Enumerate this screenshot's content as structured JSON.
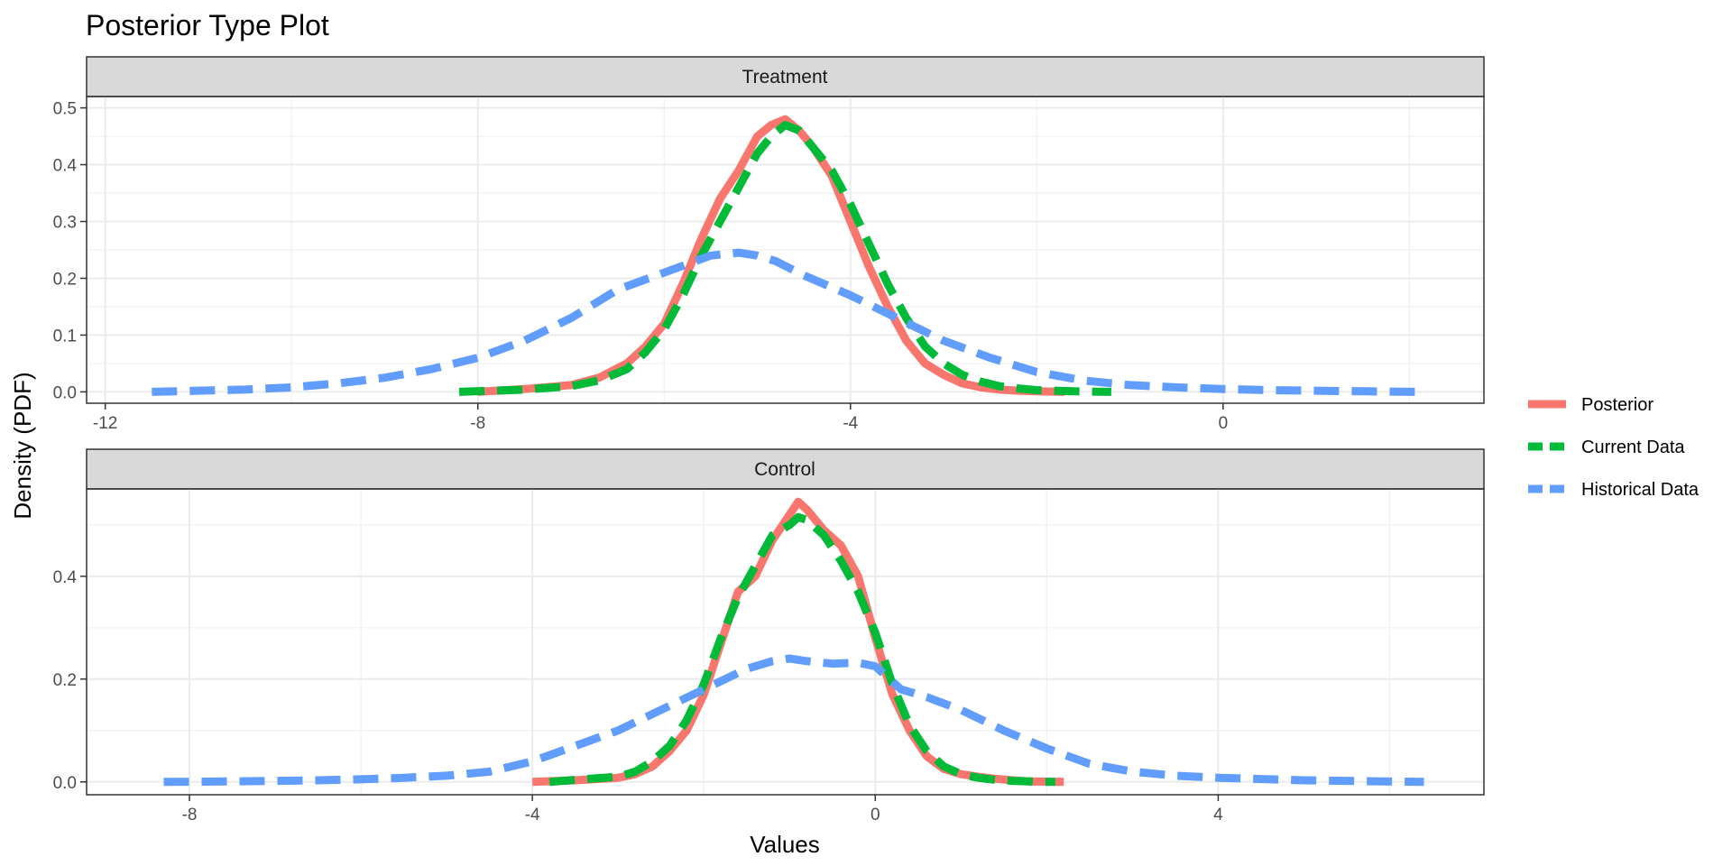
{
  "chart_data": {
    "type": "line",
    "title": "Posterior Type Plot",
    "xlabel": "Values",
    "ylabel": "Density (PDF)",
    "legend": {
      "placement": "right",
      "entries": [
        {
          "name": "Posterior",
          "color": "#F8766D",
          "dash": "solid"
        },
        {
          "name": "Current Data",
          "color": "#00BA38",
          "dash": "dashed"
        },
        {
          "name": "Historical Data",
          "color": "#619CFF",
          "dash": "dashed"
        }
      ]
    },
    "grid": true,
    "panels": [
      {
        "label": "Treatment",
        "xlim": [
          -12.2,
          2.8
        ],
        "ylim": [
          -0.02,
          0.52
        ],
        "xticks": [
          -12,
          -8,
          -4,
          0
        ],
        "xtick_labels": [
          "-12",
          "-8",
          "-4",
          "0"
        ],
        "yticks": [
          0.0,
          0.1,
          0.2,
          0.3,
          0.4,
          0.5
        ],
        "ytick_labels": [
          "0.0",
          "0.1",
          "0.2",
          "0.3",
          "0.4",
          "0.5"
        ],
        "series": [
          {
            "name": "Posterior",
            "x": [
              -8.0,
              -7.5,
              -7.0,
              -6.7,
              -6.4,
              -6.2,
              -6.0,
              -5.8,
              -5.6,
              -5.4,
              -5.2,
              -5.0,
              -4.85,
              -4.7,
              -4.55,
              -4.4,
              -4.2,
              -4.0,
              -3.8,
              -3.6,
              -3.4,
              -3.2,
              -3.0,
              -2.8,
              -2.6,
              -2.4,
              -2.2,
              -2.0,
              -1.7
            ],
            "y": [
              0.0,
              0.005,
              0.012,
              0.025,
              0.05,
              0.08,
              0.12,
              0.19,
              0.27,
              0.34,
              0.39,
              0.45,
              0.47,
              0.48,
              0.46,
              0.43,
              0.38,
              0.3,
              0.22,
              0.15,
              0.09,
              0.05,
              0.03,
              0.015,
              0.008,
              0.004,
              0.002,
              0.001,
              0.0
            ]
          },
          {
            "name": "Current Data",
            "x": [
              -8.2,
              -7.5,
              -7.0,
              -6.7,
              -6.4,
              -6.2,
              -6.0,
              -5.8,
              -5.6,
              -5.4,
              -5.2,
              -5.0,
              -4.85,
              -4.7,
              -4.55,
              -4.4,
              -4.2,
              -4.0,
              -3.8,
              -3.6,
              -3.4,
              -3.2,
              -3.0,
              -2.8,
              -2.6,
              -2.4,
              -2.2,
              -2.0,
              -1.6,
              -1.2
            ],
            "y": [
              0.0,
              0.004,
              0.01,
              0.02,
              0.04,
              0.07,
              0.11,
              0.17,
              0.24,
              0.3,
              0.36,
              0.42,
              0.45,
              0.47,
              0.46,
              0.43,
              0.39,
              0.33,
              0.26,
              0.19,
              0.13,
              0.08,
              0.05,
              0.03,
              0.018,
              0.01,
              0.006,
              0.003,
              0.001,
              0.0
            ]
          },
          {
            "name": "Historical Data",
            "x": [
              -11.5,
              -11.0,
              -10.5,
              -10.0,
              -9.5,
              -9.0,
              -8.5,
              -8.0,
              -7.5,
              -7.0,
              -6.5,
              -6.0,
              -5.5,
              -5.2,
              -5.0,
              -4.8,
              -4.5,
              -4.0,
              -3.5,
              -3.0,
              -2.5,
              -2.0,
              -1.5,
              -1.0,
              -0.5,
              0.0,
              0.5,
              1.0,
              1.5,
              2.1
            ],
            "y": [
              0.0,
              0.002,
              0.004,
              0.008,
              0.015,
              0.025,
              0.04,
              0.06,
              0.09,
              0.13,
              0.18,
              0.21,
              0.24,
              0.245,
              0.24,
              0.23,
              0.205,
              0.17,
              0.13,
              0.09,
              0.06,
              0.035,
              0.02,
              0.012,
              0.008,
              0.005,
              0.003,
              0.002,
              0.001,
              0.0
            ]
          }
        ]
      },
      {
        "label": "Control",
        "xlim": [
          -9.2,
          7.1
        ],
        "ylim": [
          -0.025,
          0.57
        ],
        "xticks": [
          -8,
          -4,
          0,
          4
        ],
        "xtick_labels": [
          "-8",
          "-4",
          "0",
          "4"
        ],
        "yticks": [
          0.0,
          0.2,
          0.4
        ],
        "ytick_labels": [
          "0.0",
          "0.2",
          "0.4"
        ],
        "series": [
          {
            "name": "Posterior",
            "x": [
              -4.0,
              -3.5,
              -3.0,
              -2.8,
              -2.6,
              -2.4,
              -2.2,
              -2.0,
              -1.8,
              -1.6,
              -1.4,
              -1.2,
              -1.0,
              -0.9,
              -0.8,
              -0.6,
              -0.4,
              -0.2,
              0.0,
              0.2,
              0.4,
              0.6,
              0.8,
              1.0,
              1.2,
              1.4,
              1.6,
              1.8,
              2.2
            ],
            "y": [
              0.0,
              0.003,
              0.008,
              0.015,
              0.03,
              0.06,
              0.1,
              0.17,
              0.27,
              0.37,
              0.4,
              0.47,
              0.52,
              0.545,
              0.53,
              0.49,
              0.46,
              0.4,
              0.28,
              0.17,
              0.1,
              0.05,
              0.025,
              0.015,
              0.01,
              0.006,
              0.003,
              0.001,
              0.0
            ]
          },
          {
            "name": "Current Data",
            "x": [
              -3.8,
              -3.5,
              -3.0,
              -2.8,
              -2.6,
              -2.4,
              -2.2,
              -2.0,
              -1.8,
              -1.6,
              -1.4,
              -1.2,
              -1.0,
              -0.9,
              -0.8,
              -0.6,
              -0.4,
              -0.2,
              0.0,
              0.2,
              0.4,
              0.6,
              0.8,
              1.0,
              1.2,
              1.4,
              1.6,
              1.8,
              2.1
            ],
            "y": [
              0.0,
              0.004,
              0.01,
              0.02,
              0.04,
              0.07,
              0.12,
              0.19,
              0.28,
              0.36,
              0.42,
              0.48,
              0.5,
              0.515,
              0.51,
              0.48,
              0.43,
              0.37,
              0.29,
              0.19,
              0.11,
              0.06,
              0.03,
              0.015,
              0.008,
              0.004,
              0.002,
              0.001,
              0.0
            ]
          },
          {
            "name": "Historical Data",
            "x": [
              -8.3,
              -7.5,
              -7.0,
              -6.5,
              -6.0,
              -5.5,
              -5.0,
              -4.5,
              -4.0,
              -3.5,
              -3.0,
              -2.5,
              -2.0,
              -1.5,
              -1.2,
              -1.0,
              -0.8,
              -0.5,
              -0.2,
              0.0,
              0.3,
              0.6,
              1.0,
              1.5,
              2.0,
              2.5,
              3.0,
              3.5,
              4.0,
              5.0,
              6.4
            ],
            "y": [
              0.0,
              0.001,
              0.002,
              0.003,
              0.005,
              0.008,
              0.012,
              0.02,
              0.04,
              0.07,
              0.1,
              0.14,
              0.18,
              0.22,
              0.235,
              0.24,
              0.235,
              0.23,
              0.232,
              0.225,
              0.18,
              0.165,
              0.14,
              0.1,
              0.065,
              0.035,
              0.02,
              0.012,
              0.008,
              0.003,
              0.0
            ]
          }
        ]
      }
    ]
  }
}
